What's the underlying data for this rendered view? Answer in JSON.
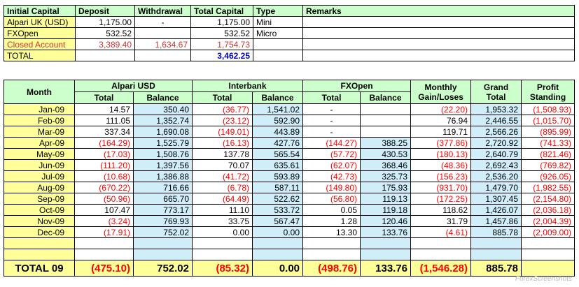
{
  "summary": {
    "headers": [
      "Initial Capital",
      "Deposit",
      "Withdrawal",
      "Total Capital",
      "Type",
      "Remarks"
    ],
    "rows": [
      {
        "name": "Alpari UK (USD)",
        "deposit": "1,175.00",
        "withdrawal": "-",
        "total": "1,175.00",
        "type": "Mini",
        "remarks": ""
      },
      {
        "name": "FXOpen",
        "deposit": "532.52",
        "withdrawal": "",
        "total": "532.52",
        "type": "Micro",
        "remarks": ""
      },
      {
        "name": "Closed Account",
        "deposit": "3,389.40",
        "withdrawal": "1,634.67",
        "total": "1,754.73",
        "type": "",
        "remarks": ""
      }
    ],
    "total_label": "TOTAL",
    "total_value": "3,462.25"
  },
  "main": {
    "month_header": "Month",
    "groups": [
      "Alpari USD",
      "Interbank",
      "FXOpen",
      "Monthly Gain/Loses",
      "Grand Total",
      "Profit Standing"
    ],
    "sub": {
      "total": "Total",
      "balance": "Balance"
    },
    "rows": [
      {
        "month": "Jan-09",
        "a_t": "14.57",
        "a_b": "350.40",
        "i_t": "(36.77)",
        "i_b": "1,541.02",
        "f_t": "-",
        "f_b": "",
        "gain": "(22.20)",
        "grand": "1,953.32",
        "profit": "(1,508.93)"
      },
      {
        "month": "Feb-09",
        "a_t": "111.05",
        "a_b": "1,352.74",
        "i_t": "(23.12)",
        "i_b": "592.90",
        "f_t": "-",
        "f_b": "",
        "gain": "76.94",
        "grand": "2,446.55",
        "profit": "(1,015.70)"
      },
      {
        "month": "Mar-09",
        "a_t": "337.34",
        "a_b": "1,690.08",
        "i_t": "(149.01)",
        "i_b": "443.89",
        "f_t": "-",
        "f_b": "",
        "gain": "119.71",
        "grand": "2,566.26",
        "profit": "(895.99)"
      },
      {
        "month": "Apr-09",
        "a_t": "(164.29)",
        "a_b": "1,525.79",
        "i_t": "(16.13)",
        "i_b": "427.76",
        "f_t": "(144.27)",
        "f_b": "388.25",
        "gain": "(377.86)",
        "grand": "2,720.92",
        "profit": "(741.33)"
      },
      {
        "month": "May-09",
        "a_t": "(17.03)",
        "a_b": "1,508.76",
        "i_t": "137.78",
        "i_b": "565.54",
        "f_t": "(57.72)",
        "f_b": "430.53",
        "gain": "(180.13)",
        "grand": "2,640.79",
        "profit": "(821.46)"
      },
      {
        "month": "Jun-09",
        "a_t": "(111.20)",
        "a_b": "1,397.56",
        "i_t": "70.07",
        "i_b": "635.61",
        "f_t": "(62.07)",
        "f_b": "368.46",
        "gain": "(48.36)",
        "grand": "2,692.43",
        "profit": "(769.82)"
      },
      {
        "month": "Jul-09",
        "a_t": "(10.68)",
        "a_b": "1,386.88",
        "i_t": "(41.72)",
        "i_b": "593.89",
        "f_t": "(42.73)",
        "f_b": "325.73",
        "gain": "(156.23)",
        "grand": "2,536.20",
        "profit": "(926.05)"
      },
      {
        "month": "Aug-09",
        "a_t": "(670.22)",
        "a_b": "716.66",
        "i_t": "(6.78)",
        "i_b": "587.11",
        "f_t": "(149.80)",
        "f_b": "175.93",
        "gain": "(931.70)",
        "grand": "1,479.70",
        "profit": "(1,982.55)"
      },
      {
        "month": "Sep-09",
        "a_t": "(50.96)",
        "a_b": "665.70",
        "i_t": "(64.49)",
        "i_b": "522.62",
        "f_t": "(56.80)",
        "f_b": "119.13",
        "gain": "(172.25)",
        "grand": "1,307.45",
        "profit": "(2,154.80)"
      },
      {
        "month": "Oct-09",
        "a_t": "107.47",
        "a_b": "773.17",
        "i_t": "11.10",
        "i_b": "533.72",
        "f_t": "0.05",
        "f_b": "119.18",
        "gain": "118.62",
        "grand": "1,426.07",
        "profit": "(2,036.18)"
      },
      {
        "month": "Nov-09",
        "a_t": "(3.24)",
        "a_b": "769.93",
        "i_t": "33.75",
        "i_b": "567.47",
        "f_t": "1.28",
        "f_b": "120.46",
        "gain": "31.79",
        "grand": "1,457.86",
        "profit": "(2,004.39)"
      },
      {
        "month": "Dec-09",
        "a_t": "(17.91)",
        "a_b": "752.02",
        "i_t": "0.00",
        "i_b": "0.00",
        "f_t": "13.30",
        "f_b": "133.76",
        "gain": "(4.61)",
        "grand": "885.78",
        "profit": "(2,009.00)"
      }
    ],
    "total": {
      "label": "TOTAL 09",
      "a_t": "(475.10)",
      "a_b": "752.02",
      "i_t": "(85.32)",
      "i_b": "0.00",
      "f_t": "(498.76)",
      "f_b": "133.76",
      "gain": "(1,546.28)",
      "grand": "885.78",
      "profit": ""
    }
  }
}
